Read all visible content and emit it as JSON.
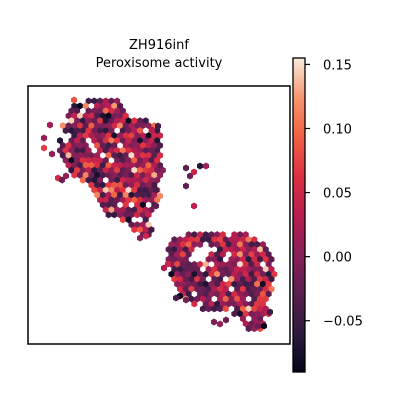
{
  "chart_data": {
    "type": "scatter",
    "title": "ZH916inf",
    "subtitle": "Peroxisome activity",
    "xlabel": "",
    "ylabel": "",
    "marker": "hexagon",
    "colormap": "rocket",
    "color_range": [
      -0.09,
      0.155
    ],
    "colorbar": {
      "ticks": [
        0.15,
        0.1,
        0.05,
        0.0,
        -0.05
      ],
      "tick_labels": [
        "0.15",
        "0.10",
        "0.05",
        "0.00",
        "−0.05"
      ]
    },
    "grid": false,
    "regions": [
      {
        "name": "upper-left tissue lobe",
        "note": "spot cloud"
      },
      {
        "name": "lower-right tissue lobe",
        "note": "spot cloud"
      }
    ]
  }
}
